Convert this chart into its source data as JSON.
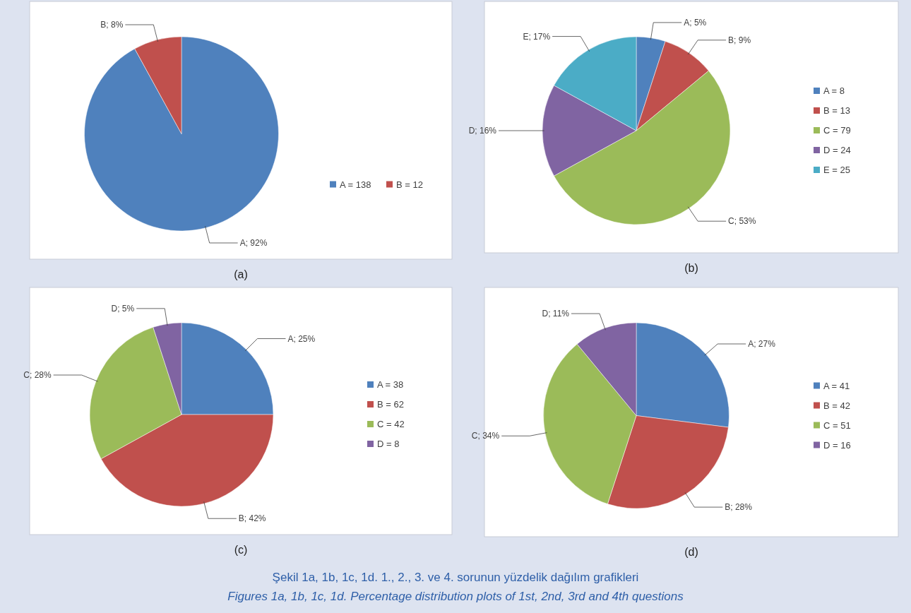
{
  "chart_data": [
    {
      "type": "pie",
      "title": "(a)",
      "categories": [
        "A = 138",
        "B = 12"
      ],
      "values": [
        92,
        8
      ],
      "value_labels": [
        "A; 92%",
        "B; 8%"
      ],
      "colors": [
        "#4f81bd",
        "#c0504d"
      ],
      "legend": "right"
    },
    {
      "type": "pie",
      "title": "(b)",
      "categories": [
        "A = 8",
        "B = 13",
        "C = 79",
        "D = 24",
        "E = 25"
      ],
      "values": [
        5,
        9,
        53,
        16,
        17
      ],
      "value_labels": [
        "A; 5%",
        "B; 9%",
        "C; 53%",
        "D; 16%",
        "E; 17%"
      ],
      "colors": [
        "#4f81bd",
        "#c0504d",
        "#9bbb59",
        "#8064a2",
        "#4bacc6"
      ],
      "legend": "right"
    },
    {
      "type": "pie",
      "title": "(c)",
      "categories": [
        "A = 38",
        "B = 62",
        "C = 42",
        "D = 8"
      ],
      "values": [
        25,
        42,
        28,
        5
      ],
      "value_labels": [
        "A; 25%",
        "B; 42%",
        "C; 28%",
        "D; 5%"
      ],
      "colors": [
        "#4f81bd",
        "#c0504d",
        "#9bbb59",
        "#8064a2"
      ],
      "legend": "right"
    },
    {
      "type": "pie",
      "title": "(d)",
      "categories": [
        "A = 41",
        "B = 42",
        "C = 51",
        "D = 16"
      ],
      "values": [
        27,
        28,
        34,
        11
      ],
      "value_labels": [
        "A; 27%",
        "B; 28%",
        "C; 34%",
        "D; 11%"
      ],
      "colors": [
        "#4f81bd",
        "#c0504d",
        "#9bbb59",
        "#8064a2"
      ],
      "legend": "right",
      "annotations": [
        "Şekil 1a, 1b, 1c, 1d. 1., 2., 3. ve 4. sorunun yüzdelik dağılım grafikleri",
        "Figures 1a, 1b, 1c, 1d. Percentage distribution plots of 1st, 2nd, 3rd and 4th questions"
      ]
    }
  ]
}
